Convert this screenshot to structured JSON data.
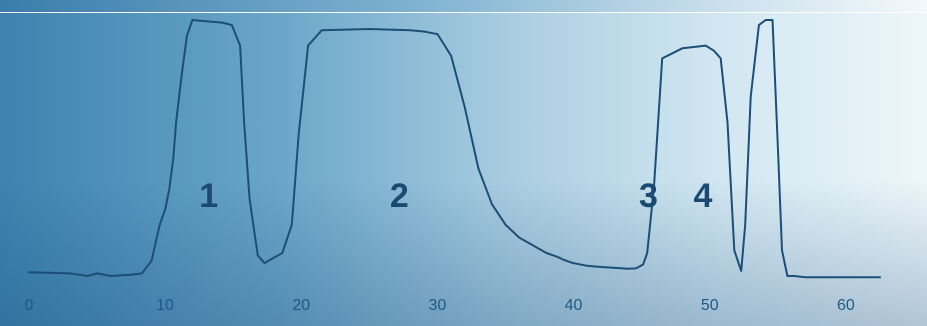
{
  "chart_data": {
    "type": "line",
    "title": "",
    "xlabel": "",
    "ylabel": "",
    "xlim": [
      0,
      60
    ],
    "ylim": [
      0,
      1
    ],
    "grid": false,
    "x_ticks": [
      0,
      10,
      20,
      30,
      40,
      50,
      60
    ],
    "x_tick_labels": [
      "0",
      "10",
      "20",
      "30",
      "40",
      "50",
      "60"
    ],
    "peak_labels": [
      {
        "text": "1",
        "x": 12.5,
        "y": 0.27
      },
      {
        "text": "2",
        "x": 26.5,
        "y": 0.27
      },
      {
        "text": "3",
        "x": 44.8,
        "y": 0.27
      },
      {
        "text": "4",
        "x": 48.8,
        "y": 0.27
      }
    ],
    "series": [
      {
        "color": "#1c4f78",
        "x": [
          0,
          3,
          4.3,
          5,
          6,
          7.5,
          8.3,
          9,
          9.6,
          10,
          10.3,
          10.6,
          10.8,
          11.2,
          11.6,
          12,
          13,
          14.2,
          14.9,
          15.5,
          15.8,
          16.2,
          16.8,
          17.3,
          17.6,
          18.1,
          18.6,
          19.3,
          19.8,
          20.5,
          21.5,
          25,
          28,
          29,
          29.5,
          30,
          31,
          32,
          33,
          34,
          35,
          36,
          37,
          38,
          38.8,
          39.2,
          39.7,
          40,
          41,
          42,
          43.5,
          44,
          44.6,
          45.1,
          45.4,
          45.9,
          46.5,
          48,
          49.7,
          50.3,
          50.8,
          51.3,
          51.8,
          52.3,
          52.6,
          53,
          53.6,
          54.1,
          54.6,
          55,
          55.3,
          55.7,
          56.2,
          57,
          60,
          62.5
        ],
        "y": [
          0.015,
          0.01,
          0.0,
          0.01,
          0.0,
          0.005,
          0.01,
          0.06,
          0.2,
          0.26,
          0.34,
          0.46,
          0.6,
          0.78,
          0.94,
          1.0,
          0.995,
          0.99,
          0.98,
          0.9,
          0.6,
          0.3,
          0.08,
          0.05,
          0.06,
          0.075,
          0.09,
          0.2,
          0.55,
          0.9,
          0.96,
          0.965,
          0.96,
          0.955,
          0.95,
          0.945,
          0.86,
          0.66,
          0.42,
          0.28,
          0.2,
          0.15,
          0.12,
          0.09,
          0.075,
          0.065,
          0.055,
          0.05,
          0.04,
          0.035,
          0.03,
          0.028,
          0.03,
          0.045,
          0.09,
          0.35,
          0.85,
          0.89,
          0.9,
          0.88,
          0.85,
          0.6,
          0.1,
          0.02,
          0.2,
          0.7,
          0.98,
          1.0,
          1.0,
          0.5,
          0.1,
          0.0,
          0.0,
          -0.005,
          -0.005,
          -0.005
        ]
      }
    ]
  }
}
